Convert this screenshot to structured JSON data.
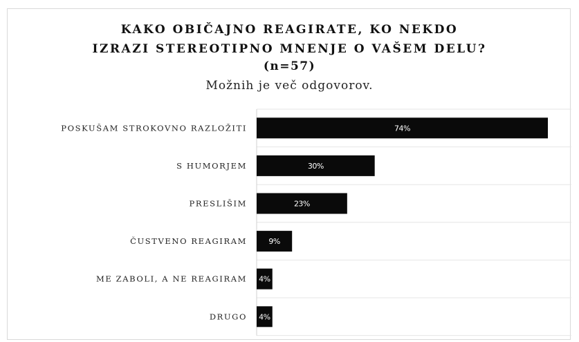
{
  "chart_data": {
    "type": "bar",
    "orientation": "horizontal",
    "title_lines": [
      "KAKO OBIČAJNO REAGIRATE, KO NEKDO",
      "IZRAZI STEREOTIPNO MNENJE O VAŠEM DELU?",
      "(n=57)"
    ],
    "subtitle": "Možnih je več odgovorov.",
    "categories": [
      "POSKUŠAM STROKOVNO RAZLOŽITI",
      "S HUMORJEM",
      "PRESLIŠIM",
      "ČUSTVENO REAGIRAM",
      "ME ZABOLI, A NE REAGIRAM",
      "DRUGO"
    ],
    "values": [
      74,
      30,
      23,
      9,
      4,
      4
    ],
    "value_labels": [
      "74%",
      "30%",
      "23%",
      "9%",
      "4%",
      "4%"
    ],
    "xlim": [
      0,
      80
    ],
    "bar_color": "#0a0a0a",
    "grid": true,
    "legend": "none"
  }
}
